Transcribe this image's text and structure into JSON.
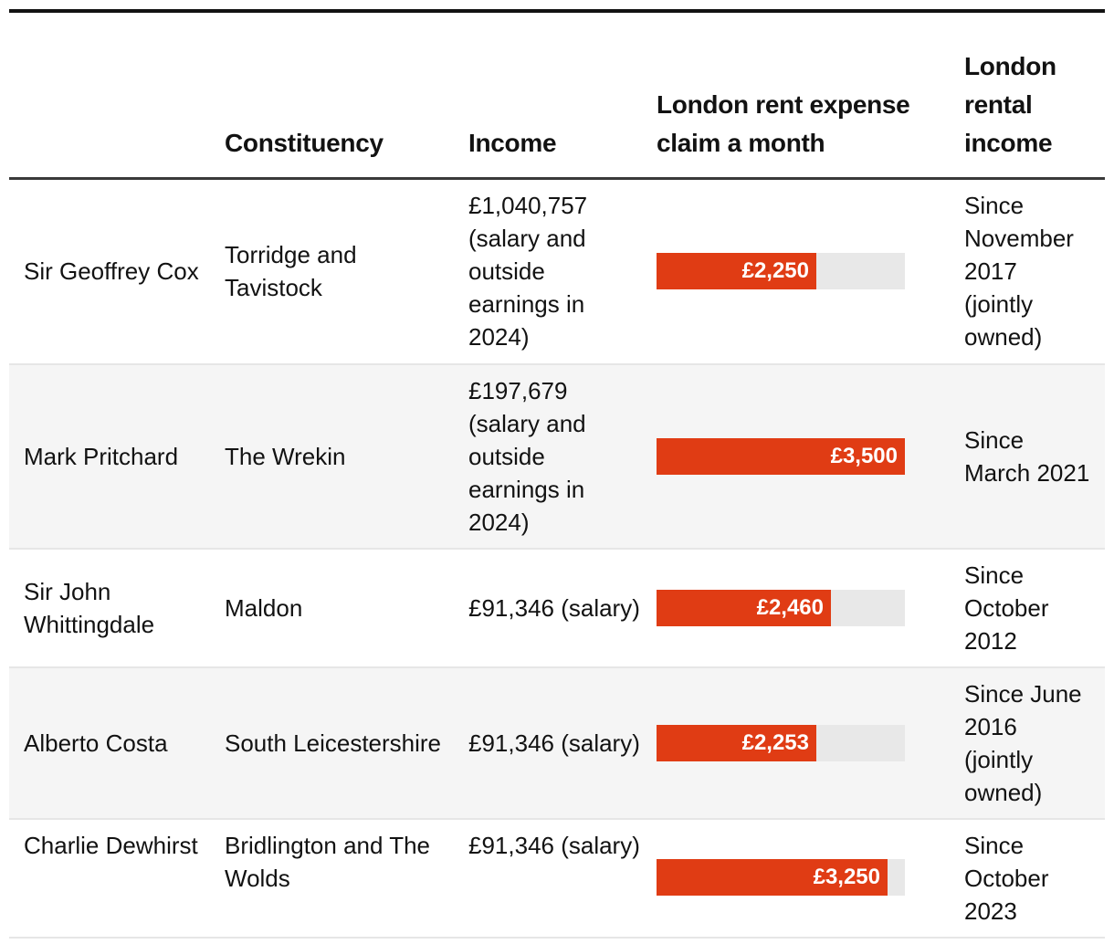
{
  "headers": {
    "name": "",
    "constituency": "Constituency",
    "income": "Income",
    "claim": "London rent expense claim a month",
    "rental": "London rental income"
  },
  "bar_max": 3500,
  "rows": [
    {
      "name": "Sir Geoffrey Cox",
      "constituency": "Torridge and Tavistock",
      "income": "£1,040,757 (salary and outside earnings in 2024)",
      "claim_label": "£2,250",
      "claim_value": 2250,
      "rental": "Since November 2017 (jointly owned)"
    },
    {
      "name": "Mark Pritchard",
      "constituency": "The Wrekin",
      "income": "£197,679 (salary and outside earnings in 2024)",
      "claim_label": "£3,500",
      "claim_value": 3500,
      "rental": "Since March 2021"
    },
    {
      "name": "Sir John Whittingdale",
      "constituency": "Maldon",
      "income": "£91,346 (salary)",
      "claim_label": "£2,460",
      "claim_value": 2460,
      "rental": "Since October 2012"
    },
    {
      "name": "Alberto Costa",
      "constituency": "South Leicestershire",
      "income": "£91,346 (salary)",
      "claim_label": "£2,253",
      "claim_value": 2253,
      "rental": "Since June 2016 (jointly owned)"
    },
    {
      "name": "Charlie Dewhirst",
      "constituency": "Bridlington and The Wolds",
      "income": "£91,346 (salary)",
      "claim_label": "£3,250",
      "claim_value": 3250,
      "rental": "Since October 2023"
    }
  ],
  "colors": {
    "bar_fill": "#e03c14",
    "bar_track": "#e8e8e8",
    "alt_row": "#f5f5f5",
    "header_rule": "#3a3a3a"
  }
}
